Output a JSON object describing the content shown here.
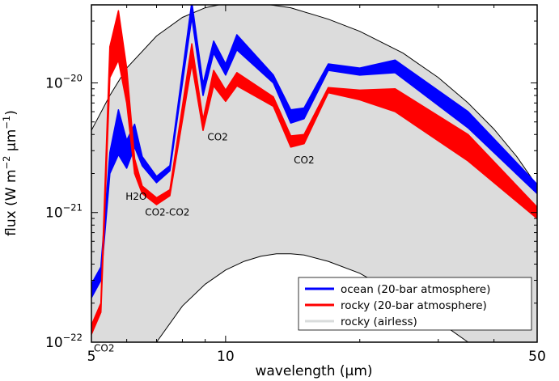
{
  "chart_data": {
    "type": "area",
    "xlabel": "wavelength (µm)",
    "ylabel_parts": [
      "flux (W m",
      "−2",
      " µm",
      "−1",
      ")"
    ],
    "xscale": "log",
    "yscale": "log",
    "xlim": [
      5,
      50
    ],
    "ylim": [
      1e-22,
      4e-20
    ],
    "grid": false,
    "x_ticks": [
      {
        "value": 5,
        "label": "5"
      },
      {
        "value": 10,
        "label": "10"
      },
      {
        "value": 50,
        "label": "50"
      }
    ],
    "y_ticks": [
      {
        "value": 1e-22,
        "base": "10",
        "exp": "−22"
      },
      {
        "value": 1e-21,
        "base": "10",
        "exp": "−21"
      },
      {
        "value": 1e-20,
        "base": "10",
        "exp": "−20"
      }
    ],
    "envelope": {
      "upper": [
        [
          5,
          4.3e-21
        ],
        [
          5.5,
          8e-21
        ],
        [
          6,
          1.3e-20
        ],
        [
          7,
          2.3e-20
        ],
        [
          8,
          3.2e-20
        ],
        [
          9,
          3.8e-20
        ],
        [
          10,
          4.1e-20
        ],
        [
          11,
          4.2e-20
        ],
        [
          12,
          4.1e-20
        ],
        [
          14,
          3.8e-20
        ],
        [
          17,
          3.1e-20
        ],
        [
          20,
          2.5e-20
        ],
        [
          25,
          1.7e-20
        ],
        [
          30,
          1.1e-20
        ],
        [
          35,
          7e-21
        ],
        [
          40,
          4.4e-21
        ],
        [
          45,
          2.7e-21
        ],
        [
          50,
          1.6e-21
        ]
      ],
      "lower": [
        [
          7,
          1e-22
        ],
        [
          8,
          1.9e-22
        ],
        [
          9,
          2.8e-22
        ],
        [
          10,
          3.6e-22
        ],
        [
          11,
          4.2e-22
        ],
        [
          12,
          4.6e-22
        ],
        [
          13,
          4.8e-22
        ],
        [
          14,
          4.8e-22
        ],
        [
          15,
          4.7e-22
        ],
        [
          17,
          4.2e-22
        ],
        [
          20,
          3.4e-22
        ],
        [
          25,
          2.2e-22
        ],
        [
          30,
          1.45e-22
        ],
        [
          35,
          1e-22
        ]
      ]
    },
    "series": [
      {
        "name": "ocean (20-bar atmosphere)",
        "color": "#0000ff",
        "x": [
          5,
          5.25,
          5.5,
          5.75,
          6,
          6.25,
          6.5,
          7,
          7.5,
          8.4,
          8.9,
          9.4,
          10,
          10.6,
          12.8,
          14,
          15,
          17,
          20,
          24,
          35,
          50
        ],
        "upper": [
          2.8e-22,
          3.8e-22,
          2.9e-21,
          6.2e-21,
          3.6e-21,
          4.8e-21,
          2.7e-21,
          1.9e-21,
          2.3e-21,
          4.2e-20,
          9.8e-21,
          2.1e-20,
          1.4e-20,
          2.35e-20,
          1.15e-20,
          6.2e-21,
          6.4e-21,
          1.4e-20,
          1.3e-20,
          1.5e-20,
          6e-21,
          1.65e-21
        ],
        "lower": [
          2.2e-22,
          3e-22,
          2e-21,
          2.8e-21,
          2.2e-21,
          3.2e-21,
          2.3e-21,
          1.7e-21,
          2.1e-21,
          3.2e-20,
          8e-21,
          1.7e-20,
          1.15e-20,
          1.8e-20,
          1e-20,
          4.9e-21,
          5.3e-21,
          1.25e-20,
          1.15e-20,
          1.2e-20,
          4.5e-21,
          1.4e-21
        ]
      },
      {
        "name": "rocky (20-bar atmosphere)",
        "color": "#ff0000",
        "x": [
          5,
          5.25,
          5.5,
          5.75,
          6,
          6.25,
          6.5,
          7,
          7.5,
          8.4,
          8.9,
          9.4,
          10,
          10.6,
          12.8,
          14,
          15,
          17,
          20,
          24,
          35,
          50
        ],
        "upper": [
          1.35e-22,
          2e-22,
          1.9e-20,
          3.6e-20,
          1.3e-20,
          2.6e-21,
          1.6e-21,
          1.3e-21,
          1.5e-21,
          2e-20,
          5.2e-21,
          1.25e-20,
          8.8e-21,
          1.2e-20,
          7.8e-21,
          3.9e-21,
          4e-21,
          9.2e-21,
          8.8e-21,
          9e-21,
          4e-21,
          1.1e-21
        ],
        "lower": [
          1.15e-22,
          1.7e-22,
          1.1e-20,
          1.5e-20,
          7e-21,
          2e-21,
          1.4e-21,
          1.15e-21,
          1.35e-21,
          1.4e-20,
          4.3e-21,
          9.5e-21,
          7.2e-21,
          9.5e-21,
          6.6e-21,
          3.2e-21,
          3.4e-21,
          8.4e-21,
          7.4e-21,
          6e-21,
          2.5e-21,
          9e-22
        ]
      }
    ],
    "annotations": [
      {
        "text": "CO2",
        "x": 5,
        "y": 8.5e-23
      },
      {
        "text": "H2O",
        "x": 6.3,
        "y": 1.25e-21
      },
      {
        "text": "CO2-CO2",
        "x": 7.4,
        "y": 9.5e-22
      },
      {
        "text": "CO2",
        "x": 9.6,
        "y": 3.6e-21
      },
      {
        "text": "CO2",
        "x": 15,
        "y": 2.4e-21
      }
    ],
    "legend": {
      "position": "lower-right",
      "entries": [
        {
          "label": "ocean (20-bar atmosphere)",
          "color": "#0000ff"
        },
        {
          "label": "rocky (20-bar atmosphere)",
          "color": "#ff0000"
        },
        {
          "label": "rocky (airless)",
          "color": "#d9dcdc"
        }
      ]
    },
    "colors": {
      "envelope_fill": "#dcdcdc",
      "envelope_line": "#000000"
    }
  }
}
